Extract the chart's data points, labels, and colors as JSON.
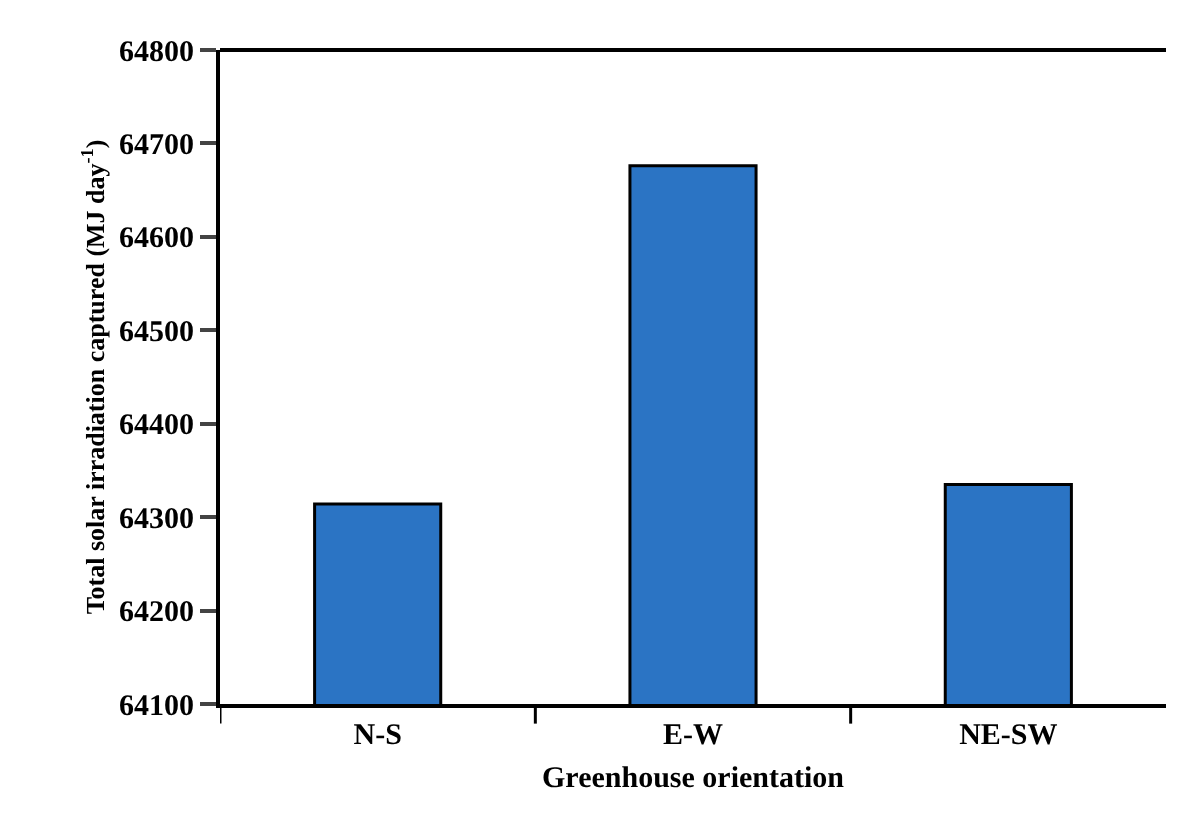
{
  "chart_data": {
    "type": "bar",
    "xlabel": "Greenhouse orientation",
    "ylabel": "Total solar irradiation captured (MJ day$^{-1}$)",
    "categories": [
      "N-S",
      "E-W",
      "NE-SW"
    ],
    "values": [
      64314,
      64676,
      64335
    ],
    "color": "#2b74c4",
    "ylim": [
      64100,
      64800
    ],
    "yticks": [
      64100,
      64200,
      64300,
      64400,
      64500,
      64600,
      64700,
      64800
    ],
    "legend": false
  }
}
